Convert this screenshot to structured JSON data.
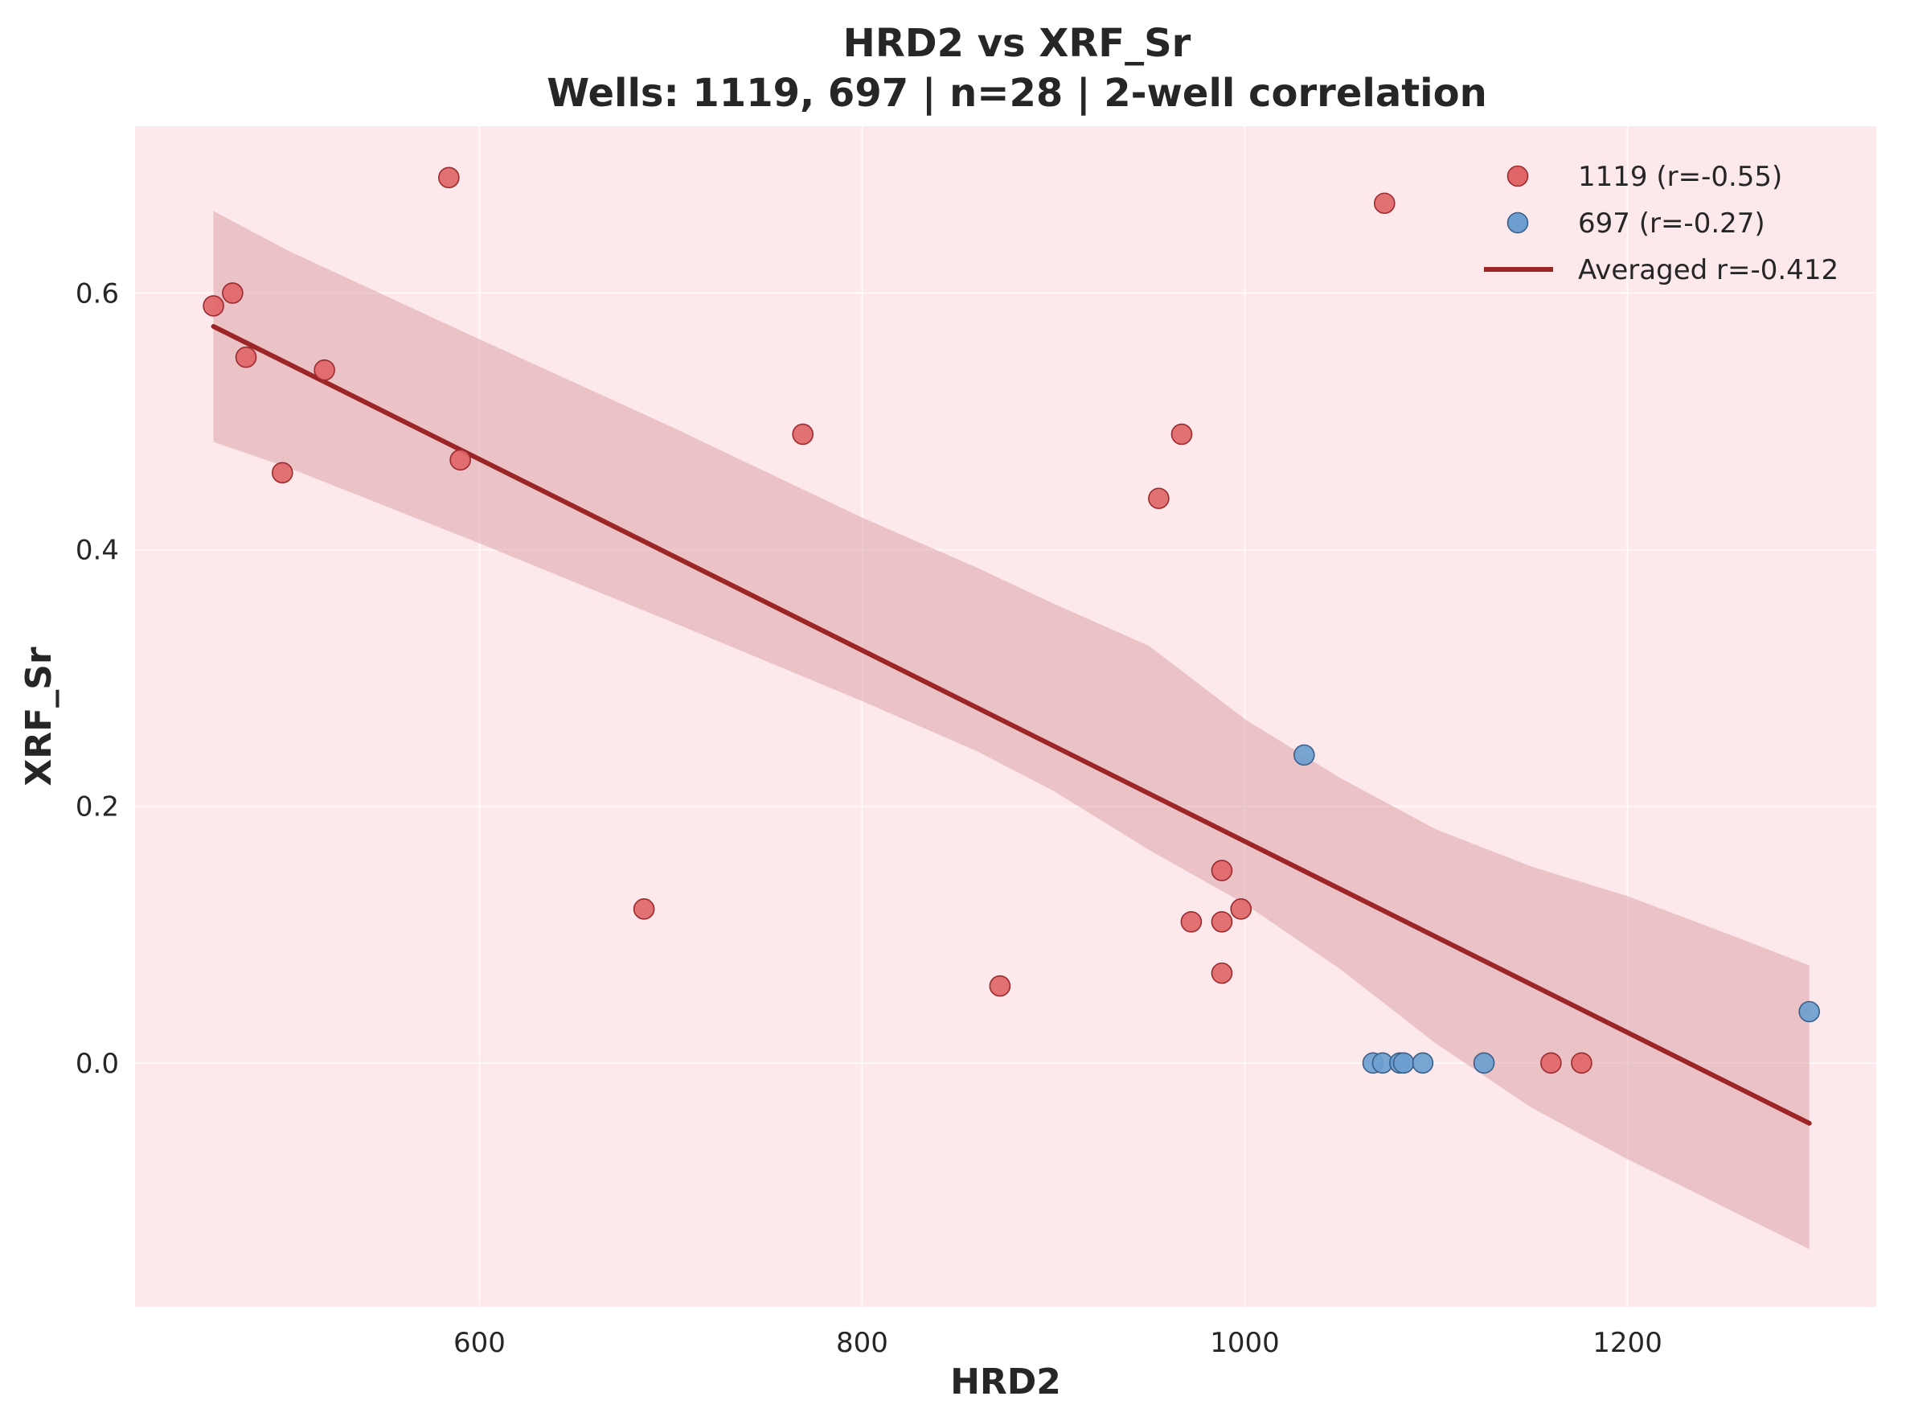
{
  "chart_data": {
    "type": "scatter",
    "title": "HRD2 vs XRF_Sr",
    "subtitle": "Wells: 1119, 697 | n=28 | 2-well correlation",
    "xlabel": "HRD2",
    "ylabel": "XRF_Sr",
    "xlim": [
      420,
      1330
    ],
    "ylim": [
      -0.19,
      0.73
    ],
    "xticks": [
      600,
      800,
      1000,
      1200
    ],
    "yticks": [
      0.0,
      0.2,
      0.4,
      0.6
    ],
    "xtick_labels": [
      "600",
      "800",
      "1000",
      "1200"
    ],
    "ytick_labels": [
      "0.0",
      "0.2",
      "0.4",
      "0.6"
    ],
    "grid": true,
    "legend_position": "top-right",
    "background_color": "#fde8eb",
    "series": [
      {
        "name": "1119 (r=-0.55)",
        "color": "#e06668",
        "edge_color": "#9b2a2e",
        "points": [
          [
            584,
            0.69
          ],
          [
            1073,
            0.67
          ],
          [
            461,
            0.59
          ],
          [
            471,
            0.6
          ],
          [
            478,
            0.55
          ],
          [
            519,
            0.54
          ],
          [
            497,
            0.46
          ],
          [
            590,
            0.47
          ],
          [
            769,
            0.49
          ],
          [
            967,
            0.49
          ],
          [
            955,
            0.44
          ],
          [
            686,
            0.12
          ],
          [
            872,
            0.06
          ],
          [
            988,
            0.15
          ],
          [
            972,
            0.11
          ],
          [
            988,
            0.11
          ],
          [
            998,
            0.12
          ],
          [
            988,
            0.07
          ],
          [
            1160,
            0.0
          ],
          [
            1176,
            0.0
          ]
        ]
      },
      {
        "name": "697 (r=-0.27)",
        "color": "#6d9ecf",
        "edge_color": "#3a5f8a",
        "points": [
          [
            1031,
            0.24
          ],
          [
            1067,
            0.0
          ],
          [
            1072,
            0.0
          ],
          [
            1081,
            0.0
          ],
          [
            1083,
            0.0
          ],
          [
            1093,
            0.0
          ],
          [
            1125,
            0.0
          ],
          [
            1295,
            0.04
          ]
        ]
      }
    ],
    "fit": {
      "name": "Averaged r=-0.412",
      "color": "#9c2528",
      "x_range": [
        461,
        1295
      ],
      "line": [
        [
          461,
          0.574
        ],
        [
          1295,
          -0.047
        ]
      ],
      "band_color": "#dca4aa",
      "band": [
        [
          461,
          0.484,
          0.664
        ],
        [
          500,
          0.464,
          0.633
        ],
        [
          600,
          0.405,
          0.564
        ],
        [
          700,
          0.344,
          0.496
        ],
        [
          800,
          0.282,
          0.425
        ],
        [
          860,
          0.243,
          0.386
        ],
        [
          900,
          0.212,
          0.358
        ],
        [
          950,
          0.166,
          0.325
        ],
        [
          1000,
          0.124,
          0.268
        ],
        [
          1050,
          0.073,
          0.222
        ],
        [
          1100,
          0.015,
          0.182
        ],
        [
          1150,
          -0.035,
          0.153
        ],
        [
          1200,
          -0.075,
          0.13
        ],
        [
          1250,
          -0.112,
          0.102
        ],
        [
          1295,
          -0.145,
          0.076
        ]
      ]
    }
  }
}
